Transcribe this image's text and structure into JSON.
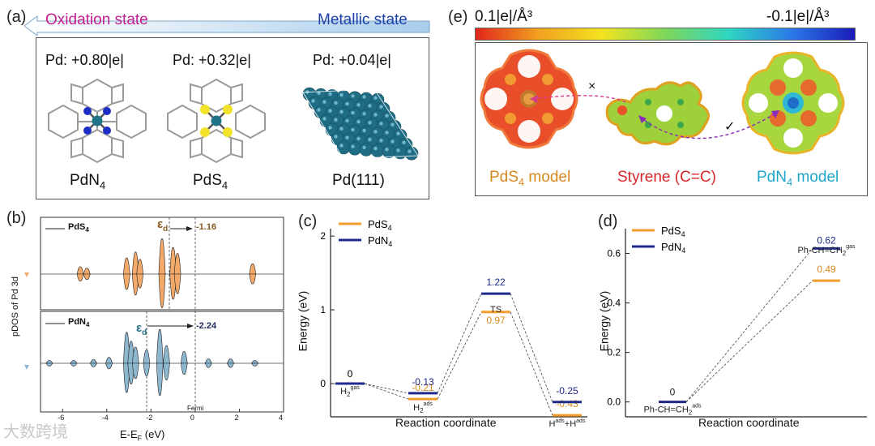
{
  "colors": {
    "orange": "#F39C2A",
    "navy": "#1E2A8C",
    "teal": "#1F6D84",
    "magenta": "#C2208F",
    "blue": "#1A3FA8",
    "arrow_bar": "#B9D7EE"
  },
  "panel_a": {
    "label": "(a)",
    "oxidation_label": "Oxidation state",
    "metallic_label": "Metallic state",
    "charges": [
      "Pd: +0.80|e|",
      "Pd: +0.32|e|",
      "Pd: +0.04|e|"
    ],
    "models": [
      {
        "name_main": "PdN",
        "name_sub": "4"
      },
      {
        "name_main": "PdS",
        "name_sub": "4"
      },
      {
        "name_main": "Pd(111)",
        "name_sub": ""
      }
    ]
  },
  "panel_b": {
    "label": "(b)",
    "top_legend": "PdS",
    "top_legend_sub": "4",
    "bottom_legend": "PdN",
    "bottom_legend_sub": "4",
    "top_eps": "ε",
    "top_eps_sub": "d",
    "top_value": "-1.16",
    "bottom_eps": "ε",
    "bottom_eps_sub": "d",
    "bottom_value": "-2.24",
    "ylabel": "pDOS of Pd 3d",
    "xlabel": "E-E",
    "xlabel_sub": "F",
    "xlabel_unit": "(eV)",
    "fermi": "Fermi",
    "xticks": [
      "-6",
      "-4",
      "-2",
      "0",
      "2",
      "4"
    ]
  },
  "panel_e": {
    "label": "(e)",
    "scale_left": "0.1|e|/Å³",
    "scale_right": "-0.1|e|/Å³",
    "model_left": "PdS",
    "model_left_sub": "4",
    "model_left_suffix": " model",
    "model_mid": "Styrene (C=C)",
    "model_right": "PdN",
    "model_right_sub": "4",
    "model_right_suffix": " model",
    "cross": "×",
    "check": "✓"
  },
  "chart_data": [
    {
      "type": "line",
      "panel": "(c)",
      "title": "",
      "xlabel": "Reaction coordinate",
      "ylabel": "Energy (eV)",
      "ylim": [
        -0.45,
        2.1
      ],
      "yticks": [
        0,
        1,
        2
      ],
      "categories": [
        "H2gas",
        "H2ads",
        "TS",
        "Hads+Hads"
      ],
      "category_labels": [
        {
          "main": "H",
          "sub": "2",
          "sup": "gas"
        },
        {
          "main": "H",
          "sub": "2",
          "sup": "ads"
        },
        {
          "main": "TS",
          "sub": "",
          "sup": ""
        },
        {
          "main": "H",
          "sub": "",
          "sup": "ads",
          "main2": "+H",
          "sup2": "ads"
        }
      ],
      "series": [
        {
          "name": "PdS4",
          "name_main": "PdS",
          "name_sub": "4",
          "values": [
            0,
            -0.21,
            0.97,
            -0.43
          ],
          "labels": [
            "0",
            "-0.21",
            "0.97",
            "-0.43"
          ]
        },
        {
          "name": "PdN4",
          "name_main": "PdN",
          "name_sub": "4",
          "values": [
            0,
            -0.13,
            1.22,
            -0.25
          ],
          "labels": [
            "0",
            "-0.13",
            "1.22",
            "-0.25"
          ]
        }
      ]
    },
    {
      "type": "line",
      "panel": "(d)",
      "title": "",
      "xlabel": "Reaction coordinate",
      "ylabel": "Energy (eV)",
      "ylim": [
        -0.06,
        0.7
      ],
      "yticks": [
        "0.0",
        "0.2",
        "0.4",
        "0.6"
      ],
      "categories": [
        "Ph-CH=CH2ads",
        "Ph-CH=CH2gas"
      ],
      "category_labels": [
        {
          "main": "Ph-CH=CH",
          "sub": "2",
          "sup": "ads"
        },
        {
          "main": "Ph-CH=CH",
          "sub": "2",
          "sup": "gas"
        }
      ],
      "series": [
        {
          "name": "PdS4",
          "name_main": "PdS",
          "name_sub": "4",
          "values": [
            0,
            0.49
          ],
          "labels": [
            "0",
            "0.49"
          ]
        },
        {
          "name": "PdN4",
          "name_main": "PdN",
          "name_sub": "4",
          "values": [
            0,
            0.62
          ],
          "labels": [
            "",
            "0.62"
          ]
        }
      ]
    }
  ],
  "watermark": "大数跨境"
}
